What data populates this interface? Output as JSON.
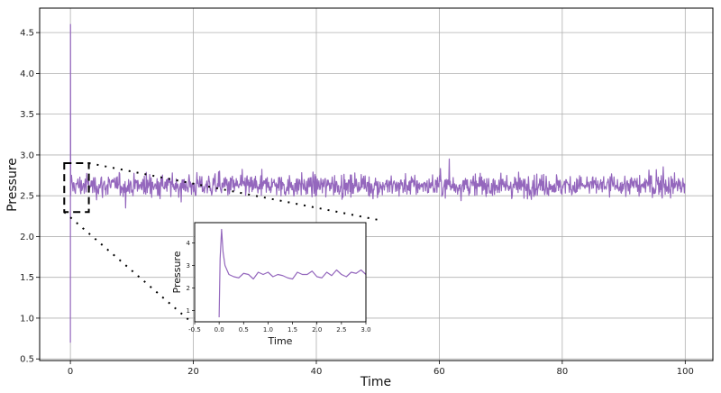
{
  "chart_data": [
    {
      "type": "line",
      "xlabel": "Time",
      "ylabel": "Pressure",
      "xlim": [
        -5,
        104.5
      ],
      "ylim": [
        0.48,
        4.8
      ],
      "xticks": [
        0,
        20,
        40,
        60,
        80,
        100
      ],
      "yticks": [
        0.5,
        1.0,
        1.5,
        2.0,
        2.5,
        3.0,
        3.5,
        4.0,
        4.5
      ],
      "grid": true,
      "series": [
        {
          "color": "#9467bd",
          "description": "noisy fluctuation around 2.6; initial spike near t=0",
          "x": [
            0,
            0.02,
            0.05,
            0.1,
            0.15,
            0.2,
            0.3,
            0.5,
            0.8,
            1.0,
            2.0,
            3.0,
            5.0,
            10.0,
            20.0,
            30.0,
            40.0,
            50.0,
            60.0,
            70.0,
            80.0,
            90.0,
            100.0
          ],
          "y": [
            0.7,
            4.6,
            2.5,
            2.6,
            2.55,
            2.7,
            2.5,
            2.6,
            2.65,
            2.55,
            2.6,
            2.62,
            2.58,
            2.6,
            2.6,
            2.6,
            2.6,
            2.6,
            2.6,
            2.6,
            2.6,
            2.6,
            2.6
          ],
          "noise_band": [
            2.3,
            2.95
          ]
        }
      ],
      "zoom_box": {
        "xrange": [
          -1,
          3
        ],
        "yrange": [
          2.3,
          2.9
        ]
      }
    },
    {
      "type": "line",
      "xlabel": "Time",
      "ylabel": "Pressure",
      "xlim": [
        -0.5,
        3.0
      ],
      "ylim": [
        0.5,
        4.9
      ],
      "xticks": [
        -0.5,
        0.0,
        0.5,
        1.0,
        1.5,
        2.0,
        2.5,
        3.0
      ],
      "xtick_labels": [
        "-0.5",
        "0.0",
        "0.5",
        "1.0",
        "1.5",
        "2.0",
        "2.5",
        "3.0"
      ],
      "yticks": [
        1,
        2,
        3,
        4
      ],
      "grid": false,
      "series": [
        {
          "color": "#9467bd",
          "x": [
            0.0,
            0.02,
            0.05,
            0.08,
            0.12,
            0.2,
            0.3,
            0.4,
            0.5,
            0.6,
            0.7,
            0.8,
            0.9,
            1.0,
            1.1,
            1.2,
            1.3,
            1.4,
            1.5,
            1.6,
            1.7,
            1.8,
            1.9,
            2.0,
            2.1,
            2.2,
            2.3,
            2.4,
            2.5,
            2.6,
            2.7,
            2.8,
            2.9,
            3.0
          ],
          "y": [
            0.7,
            3.3,
            4.6,
            3.6,
            3.0,
            2.6,
            2.5,
            2.45,
            2.65,
            2.6,
            2.4,
            2.7,
            2.6,
            2.7,
            2.5,
            2.6,
            2.55,
            2.45,
            2.4,
            2.7,
            2.6,
            2.6,
            2.75,
            2.5,
            2.45,
            2.7,
            2.55,
            2.8,
            2.6,
            2.5,
            2.7,
            2.65,
            2.8,
            2.6
          ]
        }
      ]
    }
  ]
}
